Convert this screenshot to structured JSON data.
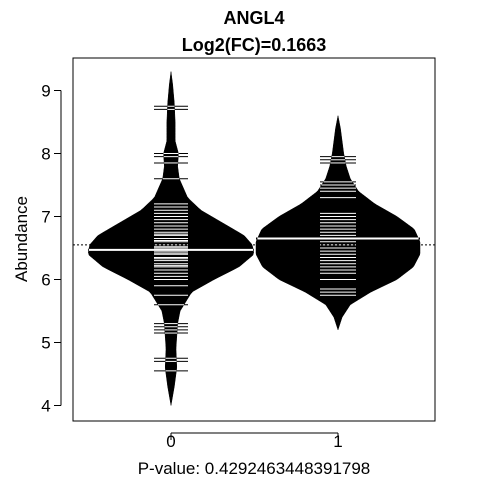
{
  "chart_data": {
    "type": "beanplot",
    "title": "ANGL4",
    "subtitle": "Log2(FC)=0.1663",
    "xlabel": "P-value: 0.4292463448391798",
    "ylabel": "Abundance",
    "categories": [
      "0",
      "1"
    ],
    "y_ticks": [
      4,
      5,
      6,
      7,
      8,
      9
    ],
    "ylim": [
      3.8,
      9.5
    ],
    "overall_mean": 6.55,
    "group_means": [
      6.47,
      6.65
    ],
    "beans": [
      {
        "category": "0",
        "range": [
          4.0,
          9.3
        ],
        "density": [
          [
            4.0,
            0.0
          ],
          [
            4.3,
            0.04
          ],
          [
            4.6,
            0.07
          ],
          [
            4.9,
            0.06
          ],
          [
            5.1,
            0.07
          ],
          [
            5.3,
            0.08
          ],
          [
            5.5,
            0.11
          ],
          [
            5.8,
            0.25
          ],
          [
            6.0,
            0.52
          ],
          [
            6.2,
            0.82
          ],
          [
            6.4,
            1.0
          ],
          [
            6.55,
            0.98
          ],
          [
            6.7,
            0.88
          ],
          [
            6.9,
            0.62
          ],
          [
            7.1,
            0.36
          ],
          [
            7.3,
            0.2
          ],
          [
            7.6,
            0.1
          ],
          [
            7.8,
            0.08
          ],
          [
            8.0,
            0.09
          ],
          [
            8.2,
            0.05
          ],
          [
            8.5,
            0.05
          ],
          [
            8.8,
            0.04
          ],
          [
            9.1,
            0.02
          ],
          [
            9.3,
            0.0
          ]
        ],
        "observations": [
          4.55,
          4.7,
          4.75,
          5.15,
          5.2,
          5.25,
          5.3,
          5.6,
          5.75,
          5.9,
          6.0,
          6.05,
          6.1,
          6.15,
          6.2,
          6.22,
          6.25,
          6.3,
          6.33,
          6.35,
          6.4,
          6.42,
          6.45,
          6.5,
          6.52,
          6.55,
          6.6,
          6.62,
          6.65,
          6.7,
          6.72,
          6.75,
          6.8,
          6.85,
          6.9,
          6.95,
          7.0,
          7.05,
          7.1,
          7.15,
          7.2,
          7.6,
          7.85,
          7.95,
          8.0,
          8.7,
          8.75
        ]
      },
      {
        "category": "1",
        "range": [
          5.2,
          8.6
        ],
        "density": [
          [
            5.2,
            0.0
          ],
          [
            5.4,
            0.05
          ],
          [
            5.6,
            0.15
          ],
          [
            5.8,
            0.4
          ],
          [
            6.0,
            0.72
          ],
          [
            6.2,
            0.92
          ],
          [
            6.4,
            1.0
          ],
          [
            6.6,
            1.0
          ],
          [
            6.8,
            0.93
          ],
          [
            7.0,
            0.72
          ],
          [
            7.2,
            0.45
          ],
          [
            7.4,
            0.25
          ],
          [
            7.6,
            0.15
          ],
          [
            7.8,
            0.1
          ],
          [
            8.0,
            0.07
          ],
          [
            8.2,
            0.05
          ],
          [
            8.4,
            0.03
          ],
          [
            8.6,
            0.0
          ]
        ],
        "observations": [
          5.75,
          5.8,
          5.85,
          6.0,
          6.1,
          6.15,
          6.2,
          6.25,
          6.3,
          6.35,
          6.4,
          6.45,
          6.5,
          6.55,
          6.6,
          6.65,
          6.7,
          6.75,
          6.8,
          6.85,
          6.9,
          6.95,
          7.0,
          7.05,
          7.3,
          7.4,
          7.45,
          7.5,
          7.55,
          7.85,
          7.9,
          7.95
        ]
      }
    ]
  }
}
